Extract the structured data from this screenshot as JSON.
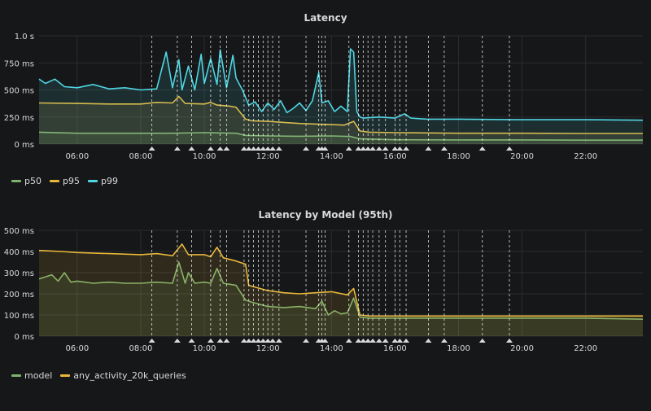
{
  "panels": [
    {
      "id": "latency",
      "title": "Latency",
      "legend": [
        {
          "label": "p50",
          "color": "#7eb26d"
        },
        {
          "label": "p95",
          "color": "#eab839"
        },
        {
          "label": "p99",
          "color": "#4fd6e3"
        }
      ]
    },
    {
      "id": "latency-by-model",
      "title": "Latency by Model (95th)",
      "legend": [
        {
          "label": "model",
          "color": "#7eb26d"
        },
        {
          "label": "any_activity_20k_queries",
          "color": "#eab839"
        }
      ]
    }
  ],
  "chart_data": [
    {
      "type": "area",
      "title": "Latency",
      "x_unit": "hour of day",
      "xlim": [
        4.8,
        23.8
      ],
      "x_ticks": [
        "06:00",
        "08:00",
        "10:00",
        "12:00",
        "14:00",
        "16:00",
        "18:00",
        "20:00",
        "22:00"
      ],
      "x_tick_values": [
        6,
        8,
        10,
        12,
        14,
        16,
        18,
        20,
        22
      ],
      "ylim": [
        0,
        1000
      ],
      "y_ticks": [
        "0 ms",
        "250 ms",
        "500 ms",
        "750 ms",
        "1.0 s"
      ],
      "y_tick_values": [
        0,
        250,
        500,
        750,
        1000
      ],
      "grid": true,
      "annotations_x": [
        8.35,
        9.15,
        9.6,
        10.2,
        10.5,
        10.7,
        11.25,
        11.4,
        11.55,
        11.7,
        11.85,
        12.0,
        12.15,
        12.35,
        13.2,
        13.6,
        13.7,
        13.8,
        14.55,
        14.85,
        15.0,
        15.15,
        15.3,
        15.5,
        15.7,
        16.0,
        16.15,
        16.35,
        17.05,
        17.55,
        18.75,
        19.6
      ],
      "series": [
        {
          "name": "p50",
          "color": "#7eb26d",
          "x": [
            4.8,
            6,
            7,
            8,
            9,
            10,
            11,
            11.3,
            12,
            13,
            14,
            14.6,
            14.9,
            16,
            18,
            20,
            22,
            23.8
          ],
          "values": [
            110,
            100,
            100,
            100,
            100,
            105,
            100,
            80,
            75,
            72,
            75,
            70,
            48,
            40,
            38,
            38,
            36,
            36
          ]
        },
        {
          "name": "p95",
          "color": "#eab839",
          "x": [
            4.8,
            6,
            7,
            8,
            8.5,
            9,
            9.2,
            9.4,
            10,
            10.2,
            10.4,
            10.8,
            11,
            11.3,
            11.5,
            12,
            12.5,
            13,
            13.5,
            14,
            14.4,
            14.7,
            14.9,
            15.2,
            16,
            18,
            20,
            22,
            23.8
          ],
          "values": [
            380,
            375,
            370,
            370,
            385,
            380,
            440,
            375,
            370,
            385,
            360,
            350,
            340,
            230,
            215,
            210,
            200,
            190,
            185,
            180,
            175,
            210,
            120,
            110,
            105,
            100,
            100,
            98,
            98
          ]
        },
        {
          "name": "p99",
          "color": "#4fd6e3",
          "x": [
            4.8,
            5.0,
            5.3,
            5.6,
            6.0,
            6.5,
            7.0,
            7.5,
            8.0,
            8.5,
            8.8,
            9.0,
            9.2,
            9.3,
            9.5,
            9.7,
            9.9,
            10.0,
            10.2,
            10.4,
            10.5,
            10.7,
            10.9,
            11.0,
            11.2,
            11.4,
            11.6,
            11.8,
            12.0,
            12.2,
            12.4,
            12.6,
            12.8,
            13.0,
            13.2,
            13.4,
            13.6,
            13.7,
            13.9,
            14.1,
            14.3,
            14.5,
            14.6,
            14.7,
            14.8,
            14.9,
            15.0,
            15.5,
            16.0,
            16.3,
            16.5,
            17.0,
            18.0,
            20.0,
            22.0,
            23.8
          ],
          "values": [
            600,
            560,
            600,
            530,
            520,
            550,
            510,
            520,
            500,
            510,
            850,
            520,
            780,
            500,
            720,
            500,
            830,
            560,
            790,
            550,
            870,
            520,
            820,
            610,
            500,
            360,
            390,
            300,
            380,
            320,
            400,
            290,
            330,
            380,
            310,
            400,
            660,
            380,
            400,
            300,
            350,
            300,
            880,
            850,
            300,
            250,
            240,
            250,
            240,
            280,
            240,
            230,
            230,
            225,
            225,
            220
          ]
        }
      ]
    },
    {
      "type": "area",
      "title": "Latency by Model (95th)",
      "x_unit": "hour of day",
      "xlim": [
        4.8,
        23.8
      ],
      "x_ticks": [
        "06:00",
        "08:00",
        "10:00",
        "12:00",
        "14:00",
        "16:00",
        "18:00",
        "20:00",
        "22:00"
      ],
      "x_tick_values": [
        6,
        8,
        10,
        12,
        14,
        16,
        18,
        20,
        22
      ],
      "ylim": [
        0,
        500
      ],
      "y_ticks": [
        "0 ms",
        "100 ms",
        "200 ms",
        "300 ms",
        "400 ms",
        "500 ms"
      ],
      "y_tick_values": [
        0,
        100,
        200,
        300,
        400,
        500
      ],
      "grid": true,
      "annotations_x": [
        8.35,
        9.15,
        9.6,
        10.2,
        10.5,
        10.7,
        11.25,
        11.4,
        11.55,
        11.7,
        11.85,
        12.0,
        12.15,
        12.35,
        13.2,
        13.6,
        13.7,
        13.8,
        14.55,
        14.85,
        15.0,
        15.15,
        15.3,
        15.5,
        15.7,
        16.0,
        16.15,
        16.35,
        17.05,
        17.55,
        18.75,
        19.6
      ],
      "series": [
        {
          "name": "model",
          "color": "#7eb26d",
          "x": [
            4.8,
            5.2,
            5.4,
            5.6,
            5.8,
            6.0,
            6.5,
            7.0,
            7.5,
            8.0,
            8.5,
            9.0,
            9.2,
            9.4,
            9.5,
            9.7,
            10.0,
            10.2,
            10.4,
            10.6,
            11.0,
            11.3,
            11.5,
            12.0,
            12.5,
            13.0,
            13.5,
            13.7,
            13.9,
            14.1,
            14.3,
            14.5,
            14.7,
            14.9,
            15.2,
            16.0,
            18.0,
            20.0,
            22.0,
            23.8
          ],
          "values": [
            270,
            290,
            260,
            300,
            255,
            260,
            250,
            255,
            250,
            250,
            255,
            250,
            350,
            250,
            300,
            250,
            255,
            250,
            320,
            250,
            240,
            170,
            160,
            140,
            135,
            140,
            130,
            165,
            100,
            120,
            105,
            110,
            180,
            90,
            85,
            85,
            85,
            85,
            85,
            80
          ]
        },
        {
          "name": "any_activity_20k_queries",
          "color": "#eab839",
          "x": [
            4.8,
            5.5,
            6.0,
            7.0,
            8.0,
            8.5,
            9.0,
            9.3,
            9.5,
            10.0,
            10.2,
            10.4,
            10.6,
            11.0,
            11.3,
            11.4,
            12.0,
            12.5,
            13.0,
            13.5,
            14.0,
            14.5,
            14.7,
            14.9,
            15.2,
            16.0,
            18.0,
            20.0,
            22.0,
            23.8
          ],
          "values": [
            405,
            400,
            395,
            390,
            385,
            390,
            380,
            435,
            385,
            385,
            375,
            420,
            370,
            355,
            340,
            240,
            215,
            205,
            200,
            205,
            210,
            195,
            225,
            100,
            95,
            95,
            95,
            95,
            95,
            95
          ]
        }
      ]
    }
  ]
}
